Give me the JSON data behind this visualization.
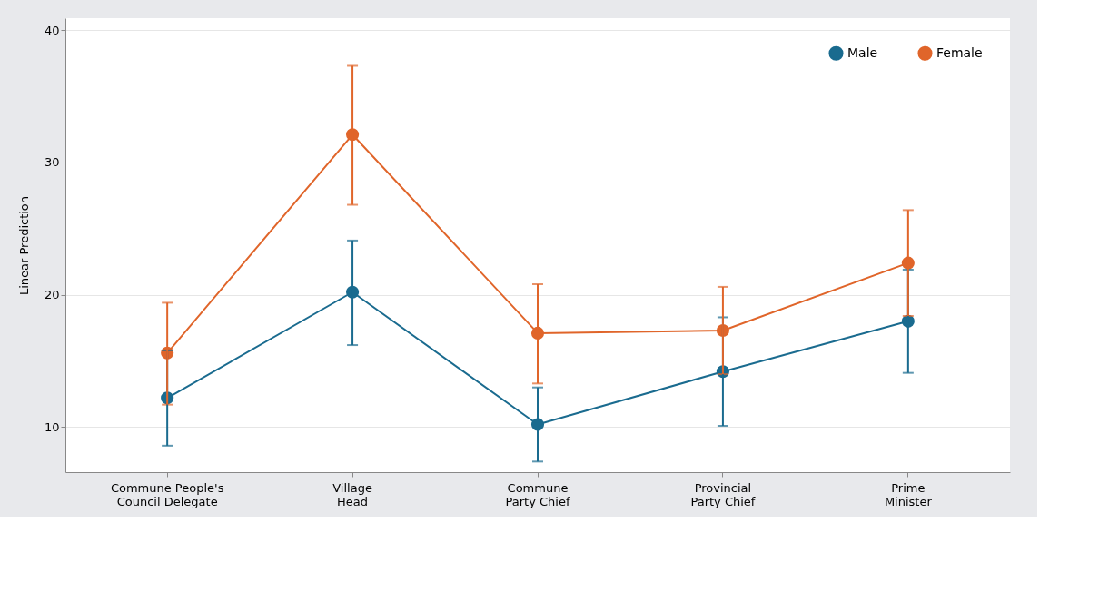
{
  "chart_data": {
    "type": "line",
    "ylabel": "Linear Prediction",
    "categories": [
      "Commune People's\nCouncil Delegate",
      "Village\nHead",
      "Commune\nParty Chief",
      "Provincial\nParty Chief",
      "Prime\nMinister"
    ],
    "series": [
      {
        "name": "Male",
        "color": "#1a6b8f",
        "values": [
          12.2,
          20.2,
          10.2,
          14.2,
          18.0
        ],
        "errors": [
          [
            8.6,
            15.8
          ],
          [
            16.2,
            24.1
          ],
          [
            7.4,
            13.0
          ],
          [
            10.1,
            18.3
          ],
          [
            14.1,
            21.9
          ]
        ]
      },
      {
        "name": "Female",
        "color": "#e0652a",
        "values": [
          15.6,
          32.1,
          17.1,
          17.3,
          22.4
        ],
        "errors": [
          [
            11.7,
            19.4
          ],
          [
            26.8,
            37.3
          ],
          [
            13.3,
            20.8
          ],
          [
            14.0,
            20.6
          ],
          [
            18.4,
            26.4
          ]
        ]
      }
    ],
    "ylim": [
      6.6,
      40.9
    ],
    "yticks": [
      10,
      20,
      30,
      40
    ],
    "grid": "y",
    "legend": "top right",
    "marker": "circle",
    "line_style": "solid"
  }
}
